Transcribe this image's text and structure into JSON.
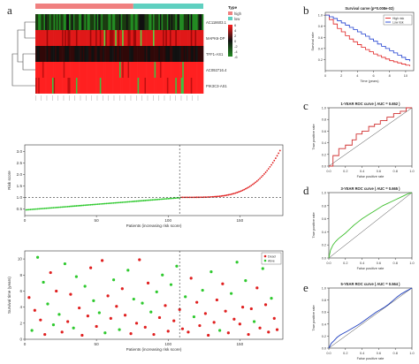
{
  "panel_labels": {
    "a": "a",
    "b": "b",
    "c": "c",
    "d": "d",
    "e": "e"
  },
  "heatmap": {
    "genes": [
      "AC118603.1",
      "MAPK6-DP",
      "TFF1-AS1",
      "AC092716.4",
      "PIK3C3-AS1"
    ],
    "legend_title": "Type",
    "legend_groups": [
      "high",
      "low"
    ],
    "group_colors": {
      "high": "#f08080",
      "low": "#5fd0c0"
    },
    "scale_labels": [
      "6",
      "4",
      "2",
      "0",
      "-2",
      "-4",
      "-6"
    ],
    "colors": {
      "low": "#228b22",
      "mid": "#111111",
      "high": "#ff2020"
    }
  },
  "chart_data": [
    {
      "id": "risk-score",
      "type": "scatter",
      "title": "",
      "xlabel": "Patients (increasing risk score)",
      "ylabel": "Risk score",
      "xticks": [
        0,
        50,
        100,
        150
      ],
      "yticks": [
        "0.5",
        "1.0",
        "1.5",
        "2.0",
        "2.5",
        "3.0"
      ],
      "xlim": [
        0,
        180
      ],
      "ylim": [
        0.2,
        3.3
      ],
      "cutoff_index": 108,
      "cutoff_value": 1.0,
      "n_patients": 178,
      "series": [
        {
          "color": "#2ec92e",
          "x_range": [
            1,
            108
          ],
          "y_start": 0.45,
          "y_end": 0.98
        },
        {
          "color": "#e02020",
          "x_range": [
            109,
            178
          ],
          "y_start": 1.0,
          "y_end": 3.05
        }
      ]
    },
    {
      "id": "survival-time",
      "type": "scatter",
      "title": "",
      "xlabel": "Patients (increasing risk score)",
      "ylabel": "Survival time (years)",
      "xticks": [
        0,
        50,
        100,
        150
      ],
      "yticks": [
        "0",
        "2",
        "4",
        "6",
        "8",
        "10"
      ],
      "xlim": [
        0,
        180
      ],
      "ylim": [
        0,
        11
      ],
      "cutoff_index": 108,
      "legend": [
        "Dead",
        "Alive"
      ],
      "legend_colors": [
        "#e02020",
        "#2ec92e"
      ],
      "points": [
        [
          3,
          5.2,
          "d"
        ],
        [
          5,
          1.1,
          "a"
        ],
        [
          7,
          3.6,
          "d"
        ],
        [
          9,
          10.2,
          "a"
        ],
        [
          11,
          2.4,
          "d"
        ],
        [
          13,
          7.1,
          "a"
        ],
        [
          14,
          0.6,
          "d"
        ],
        [
          16,
          4.4,
          "a"
        ],
        [
          18,
          8.3,
          "d"
        ],
        [
          20,
          1.8,
          "a"
        ],
        [
          22,
          6.0,
          "d"
        ],
        [
          24,
          3.1,
          "a"
        ],
        [
          26,
          0.9,
          "d"
        ],
        [
          28,
          9.4,
          "a"
        ],
        [
          30,
          2.2,
          "d"
        ],
        [
          32,
          5.6,
          "d"
        ],
        [
          34,
          1.4,
          "a"
        ],
        [
          36,
          7.8,
          "a"
        ],
        [
          38,
          3.9,
          "d"
        ],
        [
          40,
          0.5,
          "d"
        ],
        [
          42,
          6.6,
          "a"
        ],
        [
          44,
          2.9,
          "d"
        ],
        [
          46,
          8.9,
          "d"
        ],
        [
          48,
          4.8,
          "a"
        ],
        [
          50,
          1.6,
          "d"
        ],
        [
          52,
          3.3,
          "a"
        ],
        [
          54,
          9.8,
          "d"
        ],
        [
          56,
          0.8,
          "a"
        ],
        [
          58,
          5.4,
          "d"
        ],
        [
          60,
          2.6,
          "d"
        ],
        [
          62,
          7.4,
          "a"
        ],
        [
          64,
          4.1,
          "d"
        ],
        [
          66,
          1.2,
          "a"
        ],
        [
          68,
          6.3,
          "d"
        ],
        [
          70,
          3.0,
          "d"
        ],
        [
          72,
          8.6,
          "a"
        ],
        [
          74,
          0.7,
          "d"
        ],
        [
          76,
          5.0,
          "a"
        ],
        [
          78,
          2.0,
          "d"
        ],
        [
          80,
          9.9,
          "d"
        ],
        [
          82,
          4.5,
          "a"
        ],
        [
          84,
          1.5,
          "d"
        ],
        [
          86,
          7.0,
          "d"
        ],
        [
          88,
          3.4,
          "a"
        ],
        [
          90,
          0.6,
          "d"
        ],
        [
          92,
          5.9,
          "a"
        ],
        [
          94,
          2.7,
          "d"
        ],
        [
          96,
          8.0,
          "a"
        ],
        [
          98,
          4.2,
          "d"
        ],
        [
          100,
          1.0,
          "d"
        ],
        [
          102,
          6.8,
          "a"
        ],
        [
          104,
          2.3,
          "d"
        ],
        [
          106,
          9.1,
          "a"
        ],
        [
          108,
          3.7,
          "d"
        ],
        [
          110,
          1.3,
          "d"
        ],
        [
          112,
          5.3,
          "a"
        ],
        [
          114,
          0.9,
          "d"
        ],
        [
          116,
          7.6,
          "d"
        ],
        [
          118,
          2.8,
          "a"
        ],
        [
          120,
          4.6,
          "d"
        ],
        [
          122,
          1.7,
          "d"
        ],
        [
          124,
          6.1,
          "a"
        ],
        [
          126,
          3.2,
          "d"
        ],
        [
          128,
          0.5,
          "d"
        ],
        [
          130,
          8.4,
          "a"
        ],
        [
          132,
          2.1,
          "d"
        ],
        [
          134,
          4.9,
          "d"
        ],
        [
          136,
          1.1,
          "a"
        ],
        [
          138,
          6.9,
          "d"
        ],
        [
          140,
          3.5,
          "d"
        ],
        [
          142,
          0.8,
          "d"
        ],
        [
          144,
          5.7,
          "a"
        ],
        [
          146,
          2.5,
          "d"
        ],
        [
          148,
          9.6,
          "a"
        ],
        [
          150,
          1.9,
          "d"
        ],
        [
          152,
          4.0,
          "d"
        ],
        [
          154,
          7.3,
          "a"
        ],
        [
          156,
          0.6,
          "d"
        ],
        [
          158,
          3.8,
          "d"
        ],
        [
          160,
          2.2,
          "a"
        ],
        [
          162,
          6.4,
          "d"
        ],
        [
          164,
          1.4,
          "d"
        ],
        [
          166,
          8.8,
          "a"
        ],
        [
          168,
          4.3,
          "d"
        ],
        [
          170,
          0.9,
          "d"
        ],
        [
          172,
          5.1,
          "a"
        ],
        [
          174,
          2.6,
          "d"
        ],
        [
          176,
          1.2,
          "d"
        ]
      ]
    },
    {
      "id": "km-survival",
      "type": "line",
      "title": "Survival curve (p=0.008e-02)",
      "xlabel": "Time (years)",
      "ylabel": "Survival rate",
      "xticks": [
        "0",
        "2",
        "4",
        "6",
        "8",
        "10"
      ],
      "yticks": [
        "0.2",
        "0.4",
        "0.6",
        "0.8",
        "1.0"
      ],
      "xlim": [
        0,
        11
      ],
      "ylim": [
        0,
        1.05
      ],
      "legend": [
        "High risk",
        "Low risk"
      ],
      "series": [
        {
          "name": "High risk",
          "color": "#e02020",
          "x": [
            0,
            0.5,
            1,
            1.5,
            2,
            2.5,
            3,
            3.5,
            4,
            4.5,
            5,
            5.5,
            6,
            6.5,
            7,
            7.5,
            8,
            8.5,
            9,
            9.5,
            10,
            10.5
          ],
          "y": [
            1.0,
            0.92,
            0.84,
            0.76,
            0.7,
            0.63,
            0.57,
            0.52,
            0.47,
            0.42,
            0.38,
            0.34,
            0.3,
            0.27,
            0.24,
            0.21,
            0.18,
            0.16,
            0.14,
            0.12,
            0.1,
            0.08
          ]
        },
        {
          "name": "Low risk",
          "color": "#2040d0",
          "x": [
            0,
            0.5,
            1,
            1.5,
            2,
            2.5,
            3,
            3.5,
            4,
            4.5,
            5,
            5.5,
            6,
            6.5,
            7,
            7.5,
            8,
            8.5,
            9,
            9.5,
            10,
            10.5
          ],
          "y": [
            1.0,
            0.97,
            0.94,
            0.9,
            0.86,
            0.82,
            0.78,
            0.74,
            0.7,
            0.66,
            0.62,
            0.57,
            0.53,
            0.48,
            0.44,
            0.4,
            0.36,
            0.32,
            0.28,
            0.24,
            0.2,
            0.17
          ]
        }
      ]
    },
    {
      "id": "roc-1",
      "type": "line",
      "title": "1-YEAR ROC curve ( AUC = 0.652 )",
      "xlabel": "False positive rate",
      "ylabel": "True positive rate",
      "xticks": [
        "0.0",
        "0.2",
        "0.4",
        "0.6",
        "0.8",
        "1.0"
      ],
      "yticks": [
        "0.0",
        "0.2",
        "0.4",
        "0.6",
        "0.8",
        "1.0"
      ],
      "xlim": [
        0,
        1
      ],
      "ylim": [
        0,
        1
      ],
      "series": [
        {
          "color": "#d03030",
          "x": [
            0,
            0.05,
            0.05,
            0.12,
            0.12,
            0.2,
            0.2,
            0.28,
            0.28,
            0.33,
            0.33,
            0.4,
            0.4,
            0.48,
            0.48,
            0.55,
            0.55,
            0.62,
            0.62,
            0.7,
            0.7,
            0.78,
            0.78,
            0.86,
            0.86,
            0.93,
            0.93,
            1.0
          ],
          "y": [
            0,
            0,
            0.18,
            0.18,
            0.3,
            0.3,
            0.36,
            0.36,
            0.45,
            0.45,
            0.55,
            0.55,
            0.6,
            0.6,
            0.68,
            0.68,
            0.72,
            0.72,
            0.78,
            0.78,
            0.84,
            0.84,
            0.9,
            0.9,
            0.94,
            0.94,
            1.0,
            1.0
          ]
        }
      ]
    },
    {
      "id": "roc-3",
      "type": "line",
      "title": "3-YEAR ROC curve ( AUC = 0.665 )",
      "xlabel": "False positive rate",
      "ylabel": "True positive rate",
      "xticks": [
        "0.0",
        "0.2",
        "0.4",
        "0.6",
        "0.8",
        "1.0"
      ],
      "yticks": [
        "0.0",
        "0.2",
        "0.4",
        "0.6",
        "0.8",
        "1.0"
      ],
      "xlim": [
        0,
        1
      ],
      "ylim": [
        0,
        1
      ],
      "series": [
        {
          "color": "#3fbf2f",
          "x": [
            0,
            0.02,
            0.05,
            0.08,
            0.12,
            0.16,
            0.2,
            0.25,
            0.3,
            0.35,
            0.4,
            0.45,
            0.5,
            0.55,
            0.6,
            0.65,
            0.7,
            0.75,
            0.8,
            0.85,
            0.9,
            0.95,
            1.0
          ],
          "y": [
            0,
            0.12,
            0.2,
            0.25,
            0.3,
            0.34,
            0.38,
            0.44,
            0.5,
            0.55,
            0.6,
            0.64,
            0.68,
            0.72,
            0.76,
            0.8,
            0.83,
            0.86,
            0.89,
            0.92,
            0.95,
            0.98,
            1.0
          ]
        }
      ]
    },
    {
      "id": "roc-5",
      "type": "line",
      "title": "5-YEAR ROC curve ( AUC = 0.564 )",
      "xlabel": "False positive rate",
      "ylabel": "True positive rate",
      "xticks": [
        "0.0",
        "0.2",
        "0.4",
        "0.6",
        "0.8",
        "1.0"
      ],
      "yticks": [
        "0.0",
        "0.2",
        "0.4",
        "0.6",
        "0.8",
        "1.0"
      ],
      "xlim": [
        0,
        1
      ],
      "ylim": [
        0,
        1
      ],
      "series": [
        {
          "color": "#2040c0",
          "x": [
            0,
            0.03,
            0.06,
            0.1,
            0.14,
            0.18,
            0.22,
            0.27,
            0.32,
            0.37,
            0.42,
            0.47,
            0.52,
            0.57,
            0.62,
            0.67,
            0.72,
            0.77,
            0.82,
            0.87,
            0.92,
            0.96,
            1.0
          ],
          "y": [
            0,
            0.08,
            0.12,
            0.18,
            0.22,
            0.25,
            0.28,
            0.32,
            0.36,
            0.4,
            0.45,
            0.5,
            0.55,
            0.6,
            0.64,
            0.68,
            0.73,
            0.79,
            0.85,
            0.9,
            0.94,
            0.97,
            1.0
          ]
        }
      ]
    }
  ]
}
